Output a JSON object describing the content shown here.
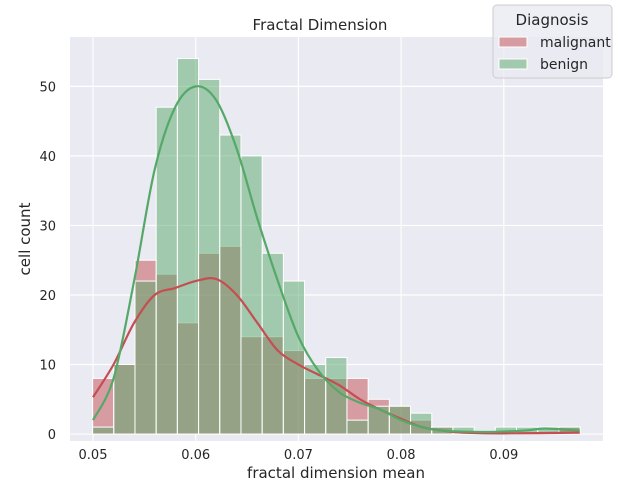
{
  "chart_data": {
    "type": "histogram",
    "title": "Fractal Dimension",
    "xlabel": "fractal dimension mean",
    "ylabel": "cell count",
    "xlim": [
      0.04776,
      0.09966
    ],
    "ylim": [
      -1,
      57.1
    ],
    "xticks": [
      "0.05",
      "0.06",
      "0.07",
      "0.08",
      "0.09"
    ],
    "yticks": [
      "0",
      "10",
      "20",
      "30",
      "40",
      "50"
    ],
    "bin_start": 0.04996,
    "bin_width": 0.002064,
    "legend": {
      "title": "Diagnosis",
      "position": "top-right"
    },
    "series": [
      {
        "name": "malignant",
        "color": "#c44e52",
        "values": [
          8,
          10,
          25,
          23,
          16,
          26,
          27,
          14,
          14,
          12,
          8,
          8,
          8,
          5,
          4,
          2,
          1,
          0,
          0,
          0,
          0,
          0,
          1
        ],
        "kde": [
          [
            0.05,
            5.3
          ],
          [
            0.052,
            10
          ],
          [
            0.054,
            16
          ],
          [
            0.056,
            20
          ],
          [
            0.058,
            21
          ],
          [
            0.06,
            22
          ],
          [
            0.062,
            22.3
          ],
          [
            0.064,
            20
          ],
          [
            0.066,
            16
          ],
          [
            0.068,
            12
          ],
          [
            0.07,
            10
          ],
          [
            0.072,
            8.5
          ],
          [
            0.074,
            7
          ],
          [
            0.076,
            5
          ],
          [
            0.078,
            3.5
          ],
          [
            0.08,
            2.2
          ],
          [
            0.082,
            1
          ],
          [
            0.084,
            0.5
          ],
          [
            0.086,
            0.2
          ],
          [
            0.09,
            0.1
          ],
          [
            0.0974,
            0.2
          ]
        ]
      },
      {
        "name": "benign",
        "color": "#55a868",
        "values": [
          1,
          10,
          22,
          47,
          54,
          51,
          43,
          40,
          26,
          22,
          10,
          11,
          2,
          4,
          4,
          3,
          1,
          1,
          0,
          1,
          1,
          1,
          1
        ],
        "kde": [
          [
            0.05,
            2
          ],
          [
            0.052,
            8
          ],
          [
            0.054,
            22
          ],
          [
            0.056,
            38
          ],
          [
            0.058,
            47
          ],
          [
            0.06,
            50
          ],
          [
            0.062,
            48
          ],
          [
            0.064,
            41
          ],
          [
            0.066,
            31
          ],
          [
            0.068,
            22
          ],
          [
            0.07,
            14
          ],
          [
            0.072,
            9
          ],
          [
            0.074,
            6
          ],
          [
            0.076,
            4.5
          ],
          [
            0.078,
            3.5
          ],
          [
            0.08,
            2
          ],
          [
            0.082,
            1
          ],
          [
            0.084,
            0.5
          ],
          [
            0.088,
            0.3
          ],
          [
            0.092,
            0.5
          ],
          [
            0.094,
            0.8
          ],
          [
            0.0974,
            0.5
          ]
        ]
      }
    ]
  }
}
